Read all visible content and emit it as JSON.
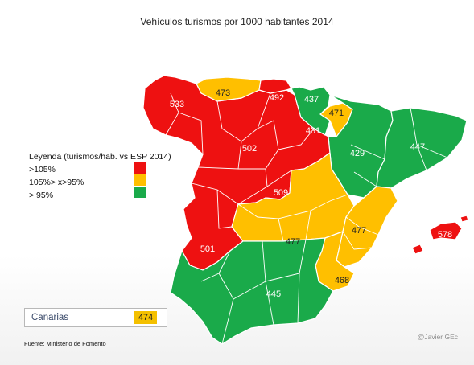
{
  "title": "Vehículos turismos por 1000 habitantes 2014",
  "colors": {
    "red": "#ee1111",
    "orange": "#ffbf00",
    "green": "#1aaa4a",
    "border": "#ffffff"
  },
  "legend": {
    "title": "Leyenda (turismos/hab. vs ESP 2014)",
    "items": [
      {
        "label": ">105%",
        "color": "#ee1111"
      },
      {
        "label": "105%> x>95%",
        "color": "#ffbf00"
      },
      {
        "label": "> 95%",
        "color": "#1aaa4a"
      }
    ]
  },
  "regions": [
    {
      "label": "533",
      "value": 533,
      "category": "red"
    },
    {
      "label": "473",
      "value": 473,
      "category": "orange"
    },
    {
      "label": "492",
      "value": 492,
      "category": "red"
    },
    {
      "label": "437",
      "value": 437,
      "category": "green"
    },
    {
      "label": "471",
      "value": 471,
      "category": "orange"
    },
    {
      "label": "431",
      "value": 431,
      "category": "green"
    },
    {
      "label": "502",
      "value": 502,
      "category": "red"
    },
    {
      "label": "429",
      "value": 429,
      "category": "green"
    },
    {
      "label": "447",
      "value": 447,
      "category": "green"
    },
    {
      "label": "509",
      "value": 509,
      "category": "red"
    },
    {
      "label": "477",
      "value": 477,
      "category": "orange"
    },
    {
      "label": "477",
      "value": 477,
      "category": "orange"
    },
    {
      "label": "501",
      "value": 501,
      "category": "red"
    },
    {
      "label": "578",
      "value": 578,
      "category": "red"
    },
    {
      "label": "468",
      "value": 468,
      "category": "orange"
    },
    {
      "label": "445",
      "value": 445,
      "category": "green"
    }
  ],
  "canarias": {
    "name": "Canarias",
    "value": "474"
  },
  "source": "Fuente: Ministerio de Fomento",
  "watermark": "@Javier GEc"
}
